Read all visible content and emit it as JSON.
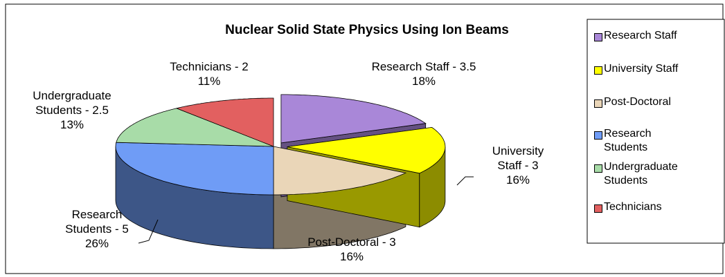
{
  "chart_data": {
    "type": "pie3d",
    "title": "Nuclear Solid State Physics Using Ion Beams",
    "categories": [
      "Research Staff",
      "University Staff",
      "Post-Doctoral",
      "Research Students",
      "Undergraduate Students",
      "Technicians"
    ],
    "values": [
      3.5,
      3,
      3,
      5,
      2.5,
      2
    ],
    "value_labels": [
      "Research Staff - 3.5",
      "University Staff - 3",
      "Post-Doctoral - 3",
      "Research Students - 5",
      "Undergraduate Students - 2.5",
      "Technicians - 2"
    ],
    "percents": [
      18,
      16,
      16,
      26,
      13,
      11
    ],
    "percent_labels": [
      "18%",
      "16%",
      "16%",
      "26%",
      "13%",
      "11%"
    ],
    "colors": [
      "#a987d8",
      "#ffff00",
      "#ead6b8",
      "#6f9cf6",
      "#a8dca8",
      "#e26060"
    ],
    "legend": "right"
  }
}
